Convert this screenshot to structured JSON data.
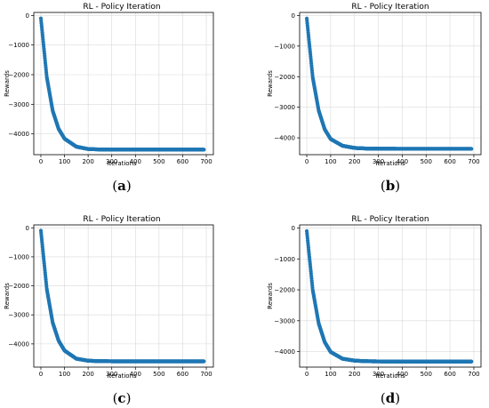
{
  "chart_data": [
    {
      "type": "scatter",
      "panel_label": "a",
      "title": "RL - Policy Iteration",
      "xlabel": "Iterations",
      "ylabel": "Rewards",
      "xlim": [
        -30,
        730
      ],
      "ylim": [
        -4700,
        100
      ],
      "xticks": [
        0,
        100,
        200,
        300,
        400,
        500,
        600,
        700
      ],
      "yticks": [
        0,
        -1000,
        -2000,
        -3000,
        -4000
      ],
      "grid": true,
      "marker_color": "#1f77b4",
      "series": [
        {
          "x": [
            0,
            25,
            50,
            75,
            100,
            150,
            200,
            250,
            300,
            400,
            500,
            600,
            690
          ],
          "y": [
            -100,
            -2080,
            -3220,
            -3830,
            -4160,
            -4430,
            -4510,
            -4525,
            -4530,
            -4530,
            -4530,
            -4530,
            -4530
          ]
        }
      ]
    },
    {
      "type": "scatter",
      "panel_label": "b",
      "title": "RL - Policy Iteration",
      "xlabel": "Iterations",
      "ylabel": "Rewards",
      "xlim": [
        -30,
        730
      ],
      "ylim": [
        -4550,
        100
      ],
      "xticks": [
        0,
        100,
        200,
        300,
        400,
        500,
        600,
        700
      ],
      "yticks": [
        0,
        -1000,
        -2000,
        -3000,
        -4000
      ],
      "grid": true,
      "marker_color": "#1f77b4",
      "series": [
        {
          "x": [
            0,
            25,
            50,
            75,
            100,
            150,
            200,
            250,
            300,
            400,
            500,
            600,
            690
          ],
          "y": [
            -100,
            -2030,
            -3110,
            -3720,
            -4040,
            -4260,
            -4330,
            -4350,
            -4355,
            -4360,
            -4360,
            -4360,
            -4360
          ]
        }
      ]
    },
    {
      "type": "scatter",
      "panel_label": "c",
      "title": "RL - Policy Iteration",
      "xlabel": "Iterations",
      "ylabel": "Rewards",
      "xlim": [
        -30,
        730
      ],
      "ylim": [
        -4800,
        100
      ],
      "xticks": [
        0,
        100,
        200,
        300,
        400,
        500,
        600,
        700
      ],
      "yticks": [
        0,
        -1000,
        -2000,
        -3000,
        -4000
      ],
      "grid": true,
      "marker_color": "#1f77b4",
      "series": [
        {
          "x": [
            0,
            25,
            50,
            75,
            100,
            150,
            200,
            250,
            300,
            400,
            500,
            600,
            690
          ],
          "y": [
            -100,
            -2110,
            -3270,
            -3890,
            -4230,
            -4510,
            -4580,
            -4595,
            -4600,
            -4600,
            -4600,
            -4600,
            -4600
          ]
        }
      ]
    },
    {
      "type": "scatter",
      "panel_label": "d",
      "title": "RL - Policy Iteration",
      "xlabel": "Iterations",
      "ylabel": "Rewards",
      "xlim": [
        -30,
        730
      ],
      "ylim": [
        -4500,
        100
      ],
      "xticks": [
        0,
        100,
        200,
        300,
        400,
        500,
        600,
        700
      ],
      "yticks": [
        0,
        -1000,
        -2000,
        -3000,
        -4000
      ],
      "grid": true,
      "marker_color": "#1f77b4",
      "series": [
        {
          "x": [
            0,
            25,
            50,
            75,
            100,
            150,
            200,
            250,
            300,
            400,
            500,
            600,
            690
          ],
          "y": [
            -100,
            -2010,
            -3090,
            -3690,
            -4010,
            -4230,
            -4290,
            -4310,
            -4315,
            -4320,
            -4320,
            -4320,
            -4320
          ]
        }
      ]
    }
  ]
}
